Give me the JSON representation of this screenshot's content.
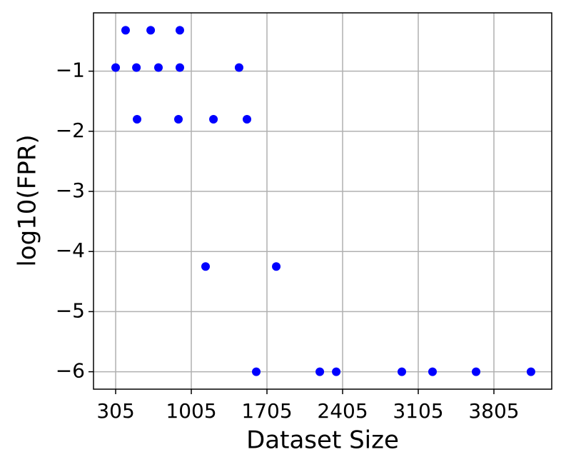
{
  "chart_data": {
    "type": "scatter",
    "xlabel": "Dataset Size",
    "ylabel": "log10(FPR)",
    "x": [
      305,
      397,
      629,
      899,
      497,
      701,
      899,
      1447,
      503,
      886,
      1210,
      1520,
      1137,
      1791,
      1606,
      2194,
      2346,
      2953,
      3237,
      3640,
      4148
    ],
    "values": [
      -0.94,
      -0.32,
      -0.32,
      -0.32,
      -0.94,
      -0.94,
      -0.94,
      -0.94,
      -1.8,
      -1.8,
      -1.8,
      -1.8,
      -4.25,
      -4.25,
      -6,
      -6,
      -6,
      -6,
      -6,
      -6,
      -6
    ],
    "color": "#0000ff",
    "xlim": [
      100,
      4340
    ],
    "ylim": [
      -6.29,
      -0.03
    ],
    "xticks": [
      305,
      1005,
      1705,
      2405,
      3105,
      3805
    ],
    "yticks": [
      {
        "value": -1,
        "label": "−1"
      },
      {
        "value": -2,
        "label": "−2"
      },
      {
        "value": -3,
        "label": "−3"
      },
      {
        "value": -4,
        "label": "−4"
      },
      {
        "value": -5,
        "label": "−5"
      },
      {
        "value": -6,
        "label": "−6"
      }
    ],
    "grid": true
  }
}
